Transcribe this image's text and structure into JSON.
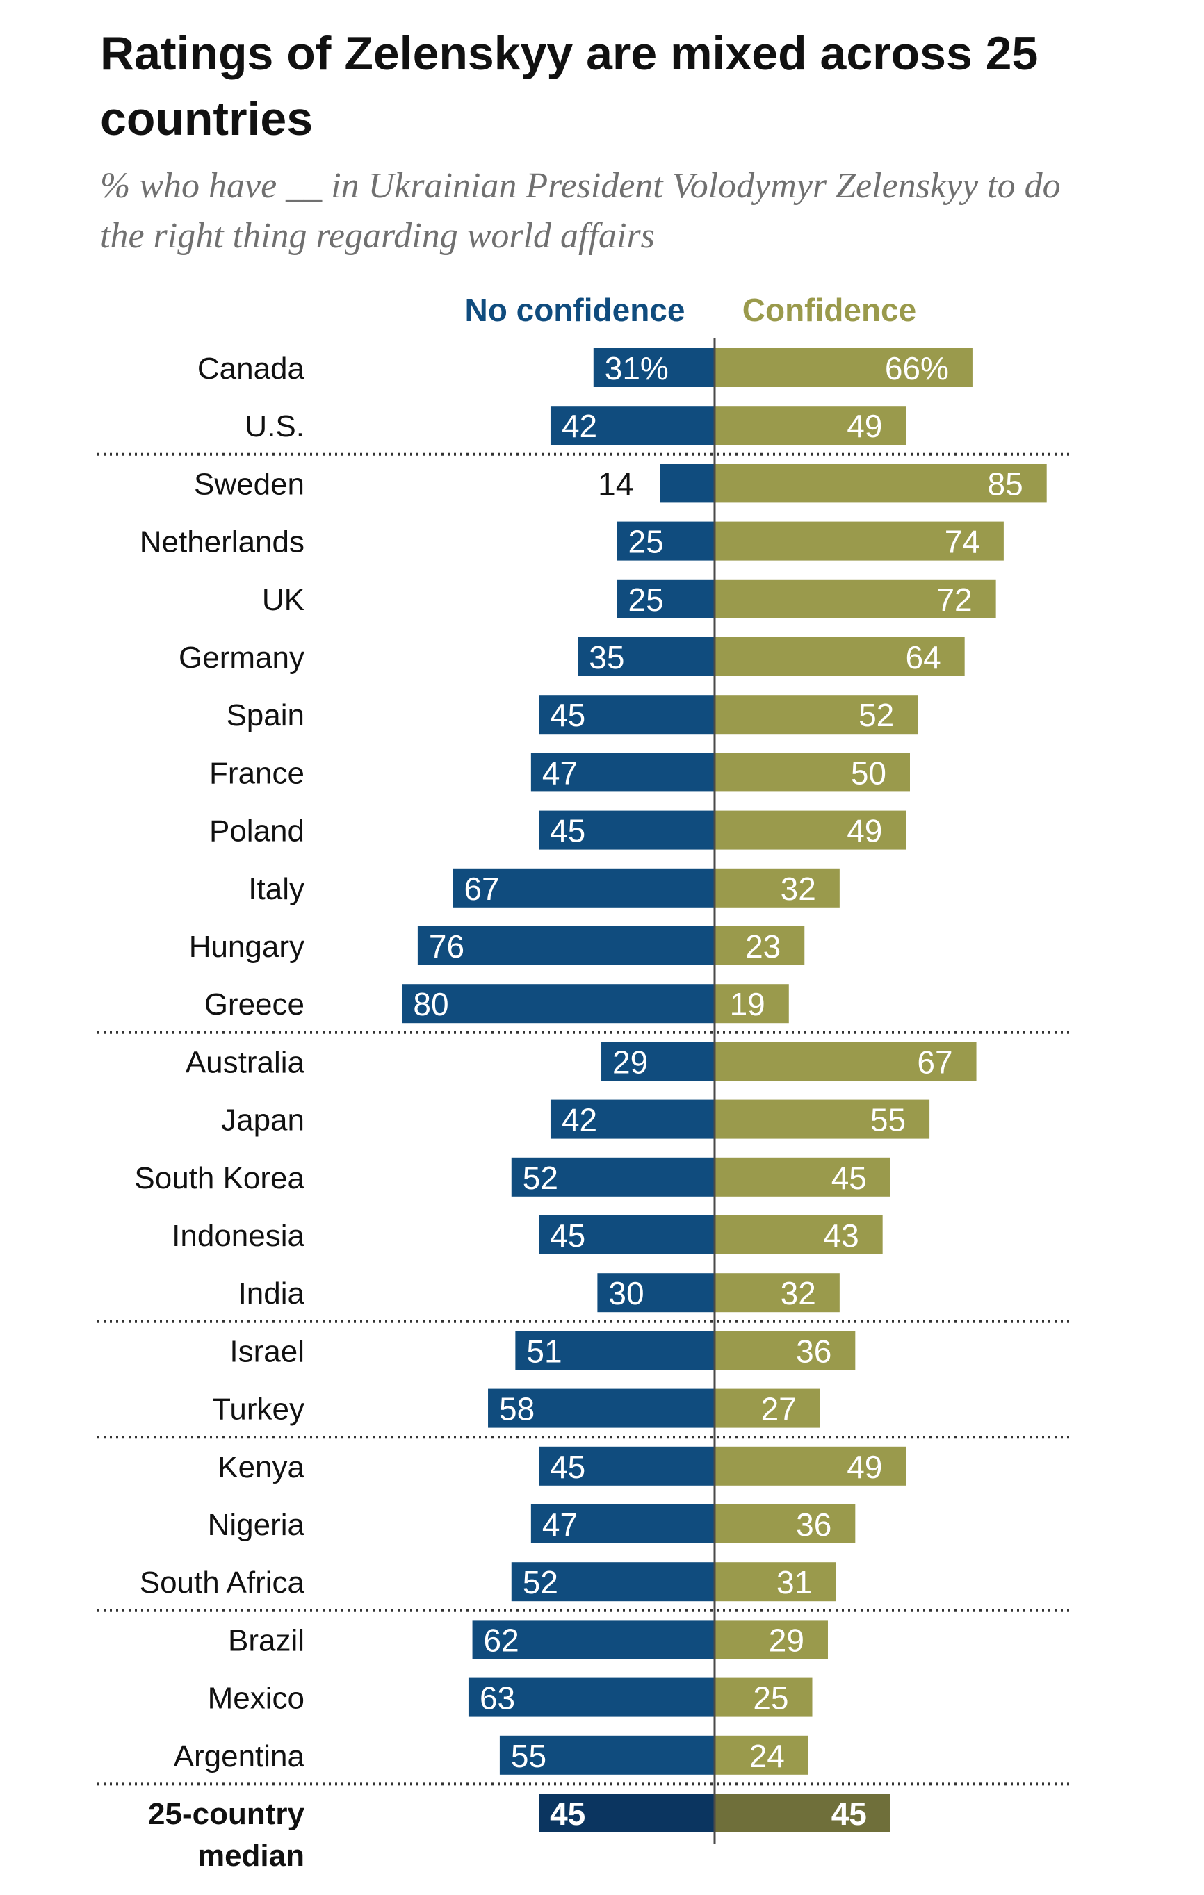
{
  "title": "Ratings of Zelenskyy are mixed across 25 countries",
  "subtitle": "% who have __ in Ukrainian President Volodymyr Zelenskyy to do the right thing regarding world affairs",
  "colors": {
    "no_confidence": "#104c7e",
    "confidence": "#9a9a4c",
    "median_no_confidence": "#0b3560",
    "median_confidence": "#6f6f3a",
    "legend_no_confidence": "#104c7e",
    "legend_confidence": "#9a9a4c"
  },
  "chart_data": {
    "type": "bar",
    "orientation": "horizontal-diverging",
    "xlim": [
      0,
      100
    ],
    "legend_position": "top",
    "series": [
      {
        "name": "No confidence",
        "values": [
          31,
          42,
          14,
          25,
          25,
          35,
          45,
          47,
          45,
          67,
          76,
          80,
          29,
          42,
          52,
          45,
          30,
          51,
          58,
          45,
          47,
          52,
          62,
          63,
          55,
          45
        ],
        "labels": [
          "31%",
          "42",
          "14",
          "25",
          "25",
          "35",
          "45",
          "47",
          "45",
          "67",
          "76",
          "80",
          "29",
          "42",
          "52",
          "45",
          "30",
          "51",
          "58",
          "45",
          "47",
          "52",
          "62",
          "63",
          "55",
          "45"
        ]
      },
      {
        "name": "Confidence",
        "values": [
          66,
          49,
          85,
          74,
          72,
          64,
          52,
          50,
          49,
          32,
          23,
          19,
          67,
          55,
          45,
          43,
          32,
          36,
          27,
          49,
          36,
          31,
          29,
          25,
          24,
          45
        ],
        "labels": [
          "66%",
          "49",
          "85",
          "74",
          "72",
          "64",
          "52",
          "50",
          "49",
          "32",
          "23",
          "19",
          "67",
          "55",
          "45",
          "43",
          "32",
          "36",
          "27",
          "49",
          "36",
          "31",
          "29",
          "25",
          "24",
          "45"
        ]
      }
    ],
    "categories": [
      "Canada",
      "U.S.",
      "Sweden",
      "Netherlands",
      "UK",
      "Germany",
      "Spain",
      "France",
      "Poland",
      "Italy",
      "Hungary",
      "Greece",
      "Australia",
      "Japan",
      "South Korea",
      "Indonesia",
      "India",
      "Israel",
      "Turkey",
      "Kenya",
      "Nigeria",
      "South Africa",
      "Brazil",
      "Mexico",
      "Argentina",
      "25-country median"
    ],
    "dividers_after": [
      "U.S.",
      "Greece",
      "India",
      "Turkey",
      "South Africa",
      "Argentina"
    ],
    "median_label_lines": [
      "25-country",
      "median"
    ]
  }
}
